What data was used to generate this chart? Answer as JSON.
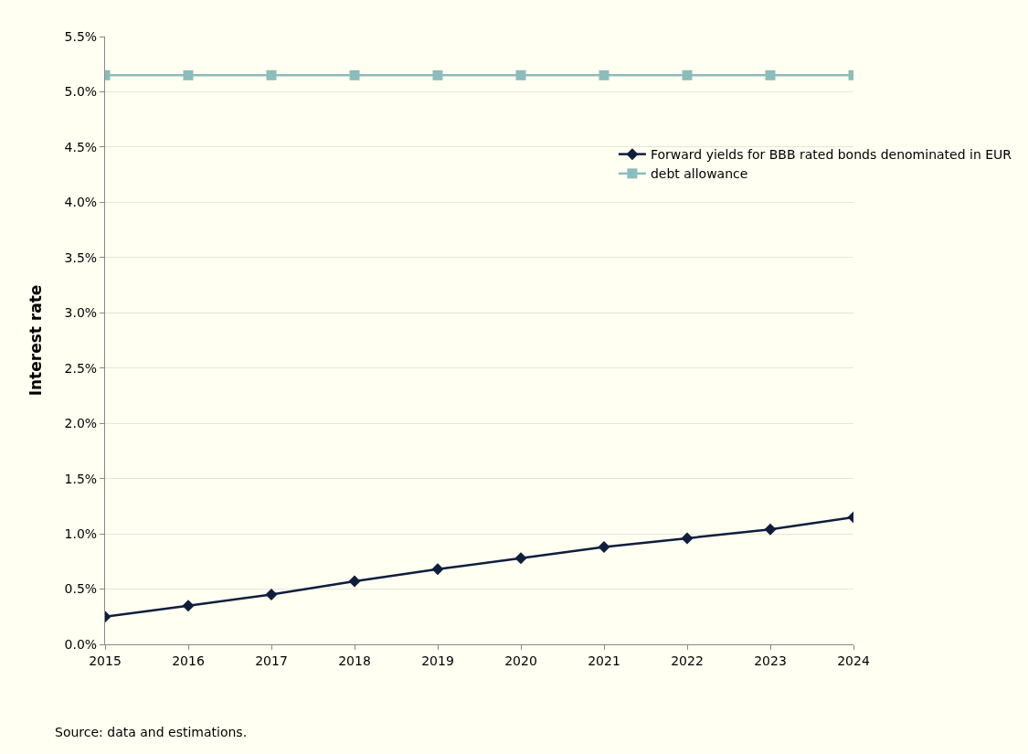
{
  "chart_data": {
    "type": "line",
    "ylabel": "Interest rate",
    "x": [
      2015,
      2016,
      2017,
      2018,
      2019,
      2020,
      2021,
      2022,
      2023,
      2024
    ],
    "series": [
      {
        "name": "Forward yields for BBB rated bonds denominated in EUR",
        "color": "#0f1e3c",
        "marker": "diamond",
        "values": [
          0.25,
          0.35,
          0.45,
          0.57,
          0.68,
          0.78,
          0.88,
          0.96,
          1.04,
          1.15
        ]
      },
      {
        "name": "debt allowance",
        "color": "#8cbcbc",
        "marker": "square",
        "values": [
          5.15,
          5.15,
          5.15,
          5.15,
          5.15,
          5.15,
          5.15,
          5.15,
          5.15,
          5.15
        ]
      }
    ],
    "xlim": [
      2015,
      2024
    ],
    "xticks": [
      2015,
      2016,
      2017,
      2018,
      2019,
      2020,
      2021,
      2022,
      2023,
      2024
    ],
    "ylim": [
      0,
      5.5
    ],
    "yticks": [
      {
        "value": 0,
        "label": "0.0%"
      },
      {
        "value": 0.5,
        "label": "0.5%"
      },
      {
        "value": 1,
        "label": "1.0%"
      },
      {
        "value": 1.5,
        "label": "1.5%"
      },
      {
        "value": 2,
        "label": "2.0%"
      },
      {
        "value": 2.5,
        "label": "2.5%"
      },
      {
        "value": 3,
        "label": "3.0%"
      },
      {
        "value": 3.5,
        "label": "3.5%"
      },
      {
        "value": 4,
        "label": "4.0%"
      },
      {
        "value": 4.5,
        "label": "4.5%"
      },
      {
        "value": 5,
        "label": "5.0%"
      },
      {
        "value": 5.5,
        "label": "5.5%"
      }
    ],
    "grid": "y",
    "legend": "top right",
    "line_style": "solid",
    "annotations": [
      "Source: data and estimations."
    ]
  }
}
